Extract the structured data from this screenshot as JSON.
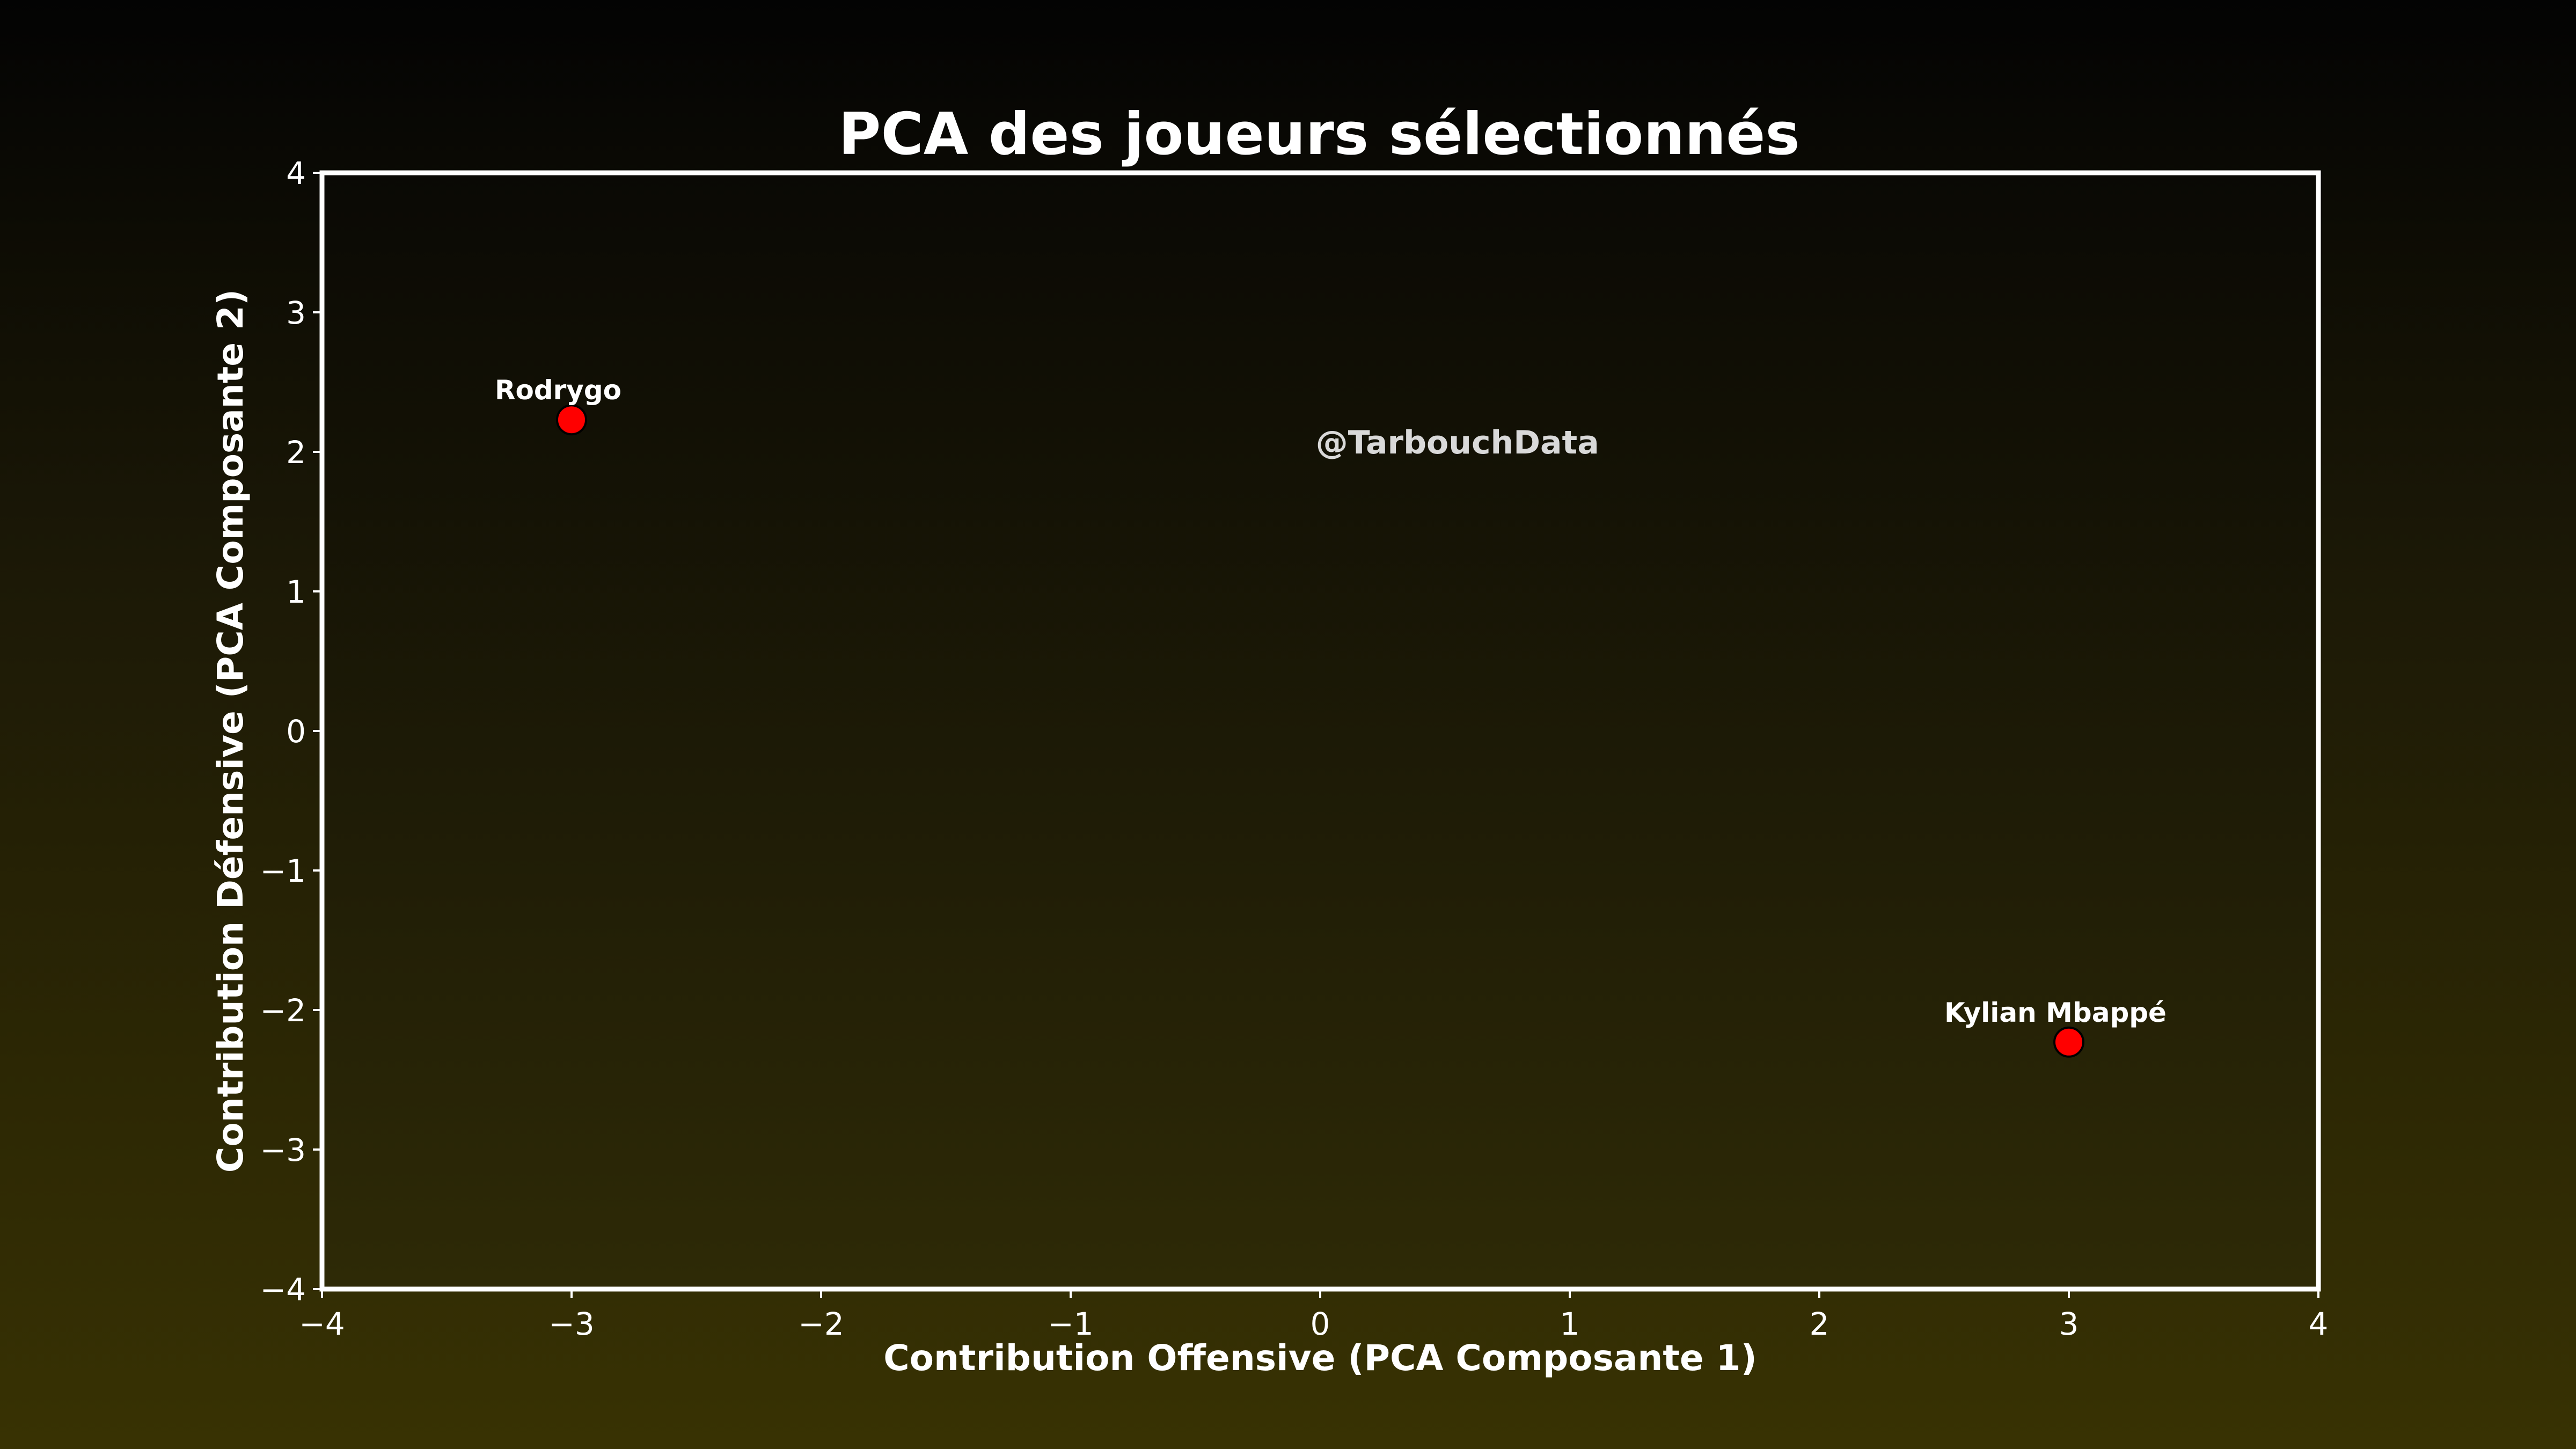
{
  "chart_data": {
    "type": "scatter",
    "title": "PCA des joueurs sélectionnés",
    "xlabel": "Contribution Offensive (PCA Composante 1)",
    "ylabel": "Contribution Défensive (PCA Composante 2)",
    "xlim": [
      -4,
      4
    ],
    "ylim": [
      -4,
      4
    ],
    "xticks": [
      -4,
      -3,
      -2,
      -1,
      0,
      1,
      2,
      3,
      4
    ],
    "yticks": [
      -4,
      -3,
      -2,
      -1,
      0,
      1,
      2,
      3,
      4
    ],
    "grid": false,
    "points": [
      {
        "label": "Rodrygo",
        "x": -3.0,
        "y": 2.23
      },
      {
        "label": "Kylian Mbappé",
        "x": 3.0,
        "y": -2.23
      }
    ],
    "annotations": [
      {
        "text": "@TarbouchData",
        "x": 0.55,
        "y": 2.08
      }
    ]
  },
  "colors": {
    "point_fill": "#ff0000",
    "point_edge": "#000000",
    "axes": "#ffffff",
    "text": "#ffffff",
    "watermark": "#d9d9d9"
  }
}
